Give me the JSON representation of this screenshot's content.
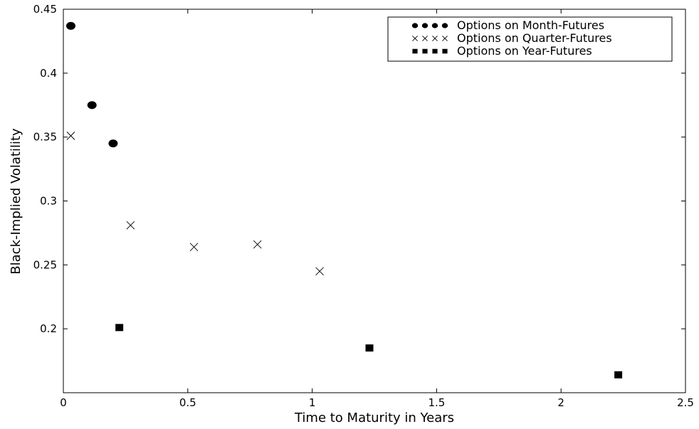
{
  "chart_data": {
    "type": "scatter",
    "xlabel": "Time to Maturity in Years",
    "ylabel": "Black-Implied Volatility",
    "xlim": [
      0,
      2.5
    ],
    "ylim": [
      0.15,
      0.45
    ],
    "x_ticks": [
      0,
      0.5,
      1,
      1.5,
      2,
      2.5
    ],
    "x_tick_labels": [
      "0",
      "0.5",
      "1",
      "1.5",
      "2",
      "2.5"
    ],
    "y_ticks": [
      0.2,
      0.25,
      0.3,
      0.35,
      0.4,
      0.45
    ],
    "y_tick_labels": [
      "0.2",
      "0.25",
      "0.3",
      "0.35",
      "0.4",
      "0.45"
    ],
    "grid": false,
    "legend_position": "top-right",
    "series": [
      {
        "name": "Options on Month-Futures",
        "marker": "circle",
        "color": "#000000",
        "points": [
          {
            "x": 0.03,
            "y": 0.437
          },
          {
            "x": 0.115,
            "y": 0.375
          },
          {
            "x": 0.2,
            "y": 0.345
          }
        ]
      },
      {
        "name": "Options on Quarter-Futures",
        "marker": "x",
        "color": "#000000",
        "points": [
          {
            "x": 0.03,
            "y": 0.351
          },
          {
            "x": 0.27,
            "y": 0.281
          },
          {
            "x": 0.525,
            "y": 0.264
          },
          {
            "x": 0.78,
            "y": 0.266
          },
          {
            "x": 1.03,
            "y": 0.245
          }
        ]
      },
      {
        "name": "Options on Year-Futures",
        "marker": "square",
        "color": "#000000",
        "points": [
          {
            "x": 0.225,
            "y": 0.201
          },
          {
            "x": 1.23,
            "y": 0.185
          },
          {
            "x": 2.23,
            "y": 0.164
          }
        ]
      }
    ]
  }
}
